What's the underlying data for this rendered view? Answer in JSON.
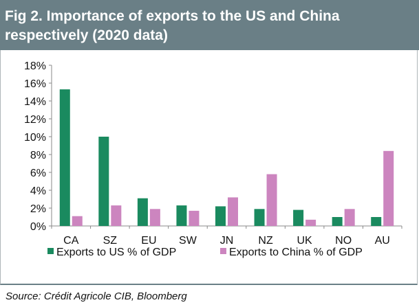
{
  "title": "Fig 2. Importance of exports to the US and China respectively (2020 data)",
  "source": "Source: Crédit Agricole CIB, Bloomberg",
  "colors": {
    "us": "#1a8a5f",
    "china": "#cc85bf",
    "title_bg": "#6a7f86"
  },
  "chart_data": {
    "type": "bar",
    "title": "Fig 2. Importance of exports to the US and China respectively (2020 data)",
    "xlabel": "",
    "ylabel": "",
    "ylim": [
      0,
      18
    ],
    "yticks": [
      0,
      2,
      4,
      6,
      8,
      10,
      12,
      14,
      16,
      18
    ],
    "ytick_labels": [
      "0%",
      "2%",
      "4%",
      "6%",
      "8%",
      "10%",
      "12%",
      "14%",
      "16%",
      "18%"
    ],
    "categories": [
      "CA",
      "SZ",
      "EU",
      "SW",
      "JN",
      "NZ",
      "UK",
      "NO",
      "AU"
    ],
    "series": [
      {
        "name": "Exports to US % of GDP",
        "values": [
          15.3,
          10.0,
          3.1,
          2.3,
          2.2,
          1.9,
          1.8,
          1.0,
          1.0
        ]
      },
      {
        "name": "Exports to China % of GDP",
        "values": [
          1.1,
          2.3,
          1.9,
          1.7,
          3.2,
          5.8,
          0.7,
          1.9,
          8.4
        ]
      }
    ],
    "legend": "bottom",
    "grid": false
  }
}
